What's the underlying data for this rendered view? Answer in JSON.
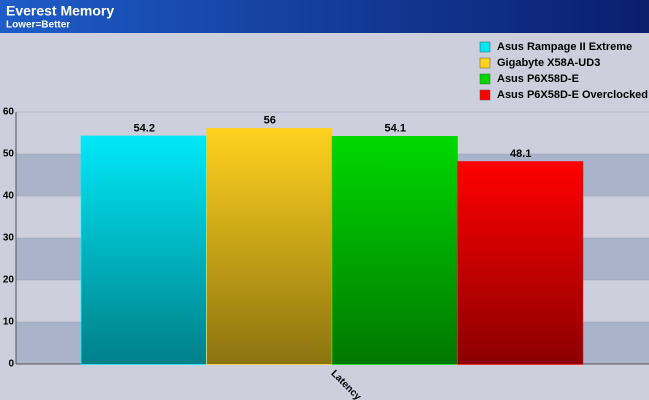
{
  "chart_data": {
    "type": "bar",
    "title": "Everest Memory",
    "subtitle": "Lower=Better",
    "categories": [
      "Latency"
    ],
    "series": [
      {
        "name": "Asus Rampage II Extreme",
        "color": "#00e8f8",
        "values": [
          54.2
        ]
      },
      {
        "name": "Gigabyte X58A-UD3",
        "color": "#ffd21e",
        "values": [
          56
        ]
      },
      {
        "name": "Asus P6X58D-E",
        "color": "#00d800",
        "values": [
          54.1
        ]
      },
      {
        "name": "Asus P6X58D-E Overclocked",
        "color": "#ff0000",
        "values": [
          48.1
        ]
      }
    ],
    "ylim": [
      0,
      60
    ],
    "yticks": [
      0,
      10,
      20,
      30,
      40,
      50,
      60
    ],
    "grid": true,
    "legend": "top-right"
  }
}
